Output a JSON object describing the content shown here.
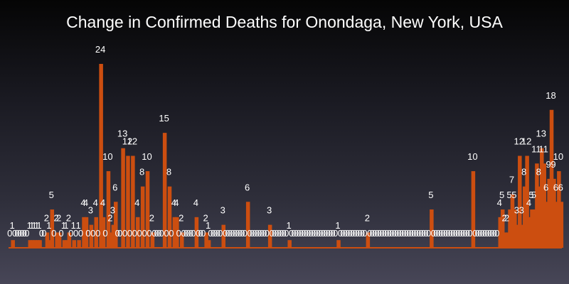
{
  "chart_data": {
    "type": "bar",
    "title": "Change in Confirmed Deaths for Onondaga, New York, USA",
    "xlabel": "",
    "ylabel": "",
    "ylim": [
      0,
      24
    ],
    "grid": false,
    "legend": "none",
    "bar_color": "#cc4e10",
    "label_color": "#ffffff",
    "values": [
      0,
      1,
      0,
      0,
      0,
      0,
      0,
      0,
      1,
      1,
      1,
      1,
      1,
      0,
      0,
      2,
      1,
      5,
      0,
      2,
      2,
      0,
      1,
      1,
      2,
      0,
      1,
      0,
      1,
      0,
      4,
      4,
      0,
      3,
      0,
      4,
      0,
      24,
      4,
      0,
      10,
      2,
      3,
      6,
      0,
      0,
      13,
      0,
      12,
      0,
      12,
      0,
      4,
      0,
      8,
      0,
      10,
      0,
      2,
      0,
      0,
      0,
      0,
      15,
      0,
      8,
      0,
      4,
      4,
      0,
      2,
      0,
      0,
      0,
      0,
      0,
      4,
      0,
      0,
      0,
      2,
      1,
      0,
      0,
      0,
      0,
      0,
      3,
      0,
      0,
      0,
      0,
      0,
      0,
      0,
      0,
      0,
      6,
      0,
      0,
      0,
      0,
      0,
      0,
      0,
      0,
      3,
      0,
      0,
      0,
      0,
      0,
      0,
      0,
      1,
      0,
      0,
      0,
      0,
      0,
      0,
      0,
      0,
      0,
      0,
      0,
      0,
      0,
      0,
      0,
      0,
      0,
      0,
      0,
      1,
      0,
      0,
      0,
      0,
      0,
      0,
      0,
      0,
      0,
      0,
      0,
      2,
      0,
      0,
      0,
      0,
      0,
      0,
      0,
      0,
      0,
      0,
      0,
      0,
      0,
      0,
      0,
      0,
      0,
      0,
      0,
      0,
      0,
      0,
      0,
      0,
      0,
      5,
      0,
      0,
      0,
      0,
      0,
      0,
      0,
      0,
      0,
      0,
      0,
      0,
      0,
      0,
      0,
      0,
      10,
      0,
      0,
      0,
      0,
      0,
      0,
      0,
      0,
      0,
      0,
      4,
      5,
      2,
      2,
      5,
      7,
      5,
      3,
      12,
      3,
      8,
      12,
      4,
      5,
      5,
      11,
      8,
      13,
      11,
      6,
      9,
      18,
      9,
      6,
      10,
      6
    ]
  }
}
